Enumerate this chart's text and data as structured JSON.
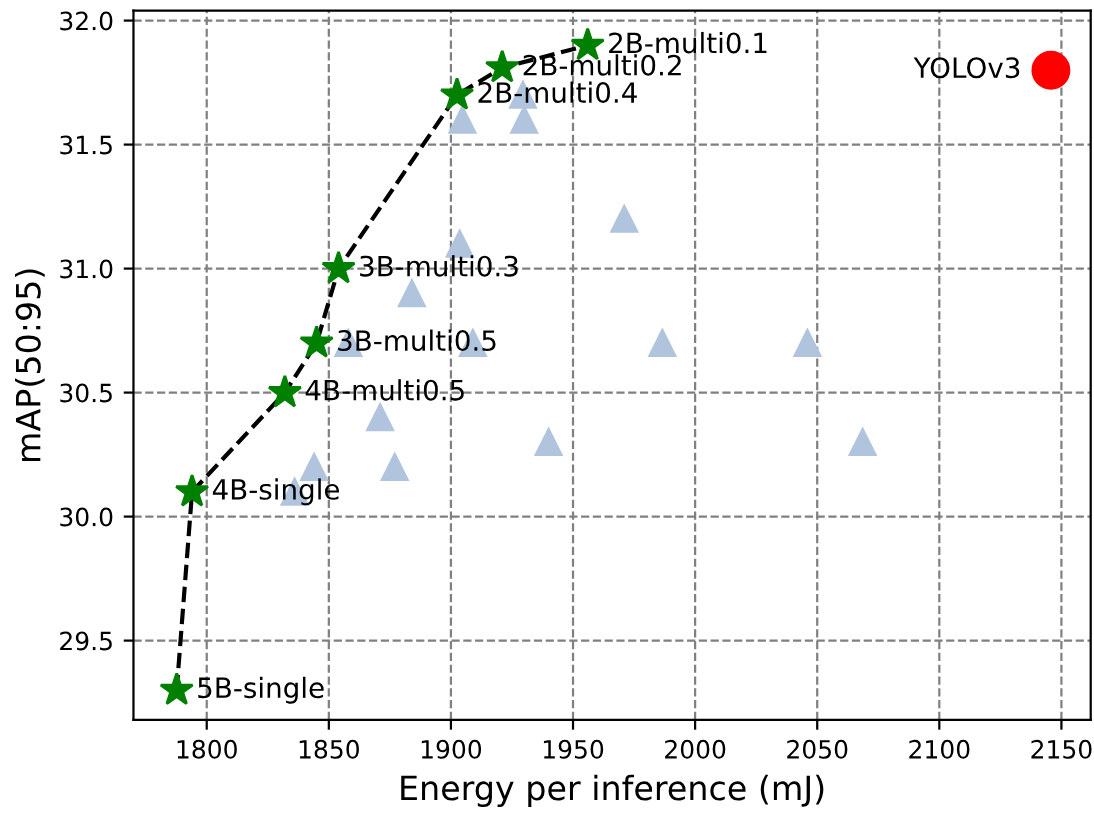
{
  "chart_data": {
    "type": "scatter",
    "xlabel": "Energy per inference (mJ)",
    "ylabel": "mAP(50:95)",
    "xlim": [
      1770,
      2162
    ],
    "ylim": [
      29.18,
      32.04
    ],
    "xticks": [
      1800,
      1850,
      1900,
      1950,
      2000,
      2050,
      2100,
      2150
    ],
    "yticks": [
      {
        "value": 29.5,
        "label": "29.5"
      },
      {
        "value": 30.0,
        "label": "30.0"
      },
      {
        "value": 30.5,
        "label": "30.5"
      },
      {
        "value": 31.0,
        "label": "31.0"
      },
      {
        "value": 31.5,
        "label": "31.5"
      },
      {
        "value": 32.0,
        "label": "32.0"
      }
    ],
    "grid": true,
    "legend": false,
    "series": [
      {
        "marker": "triangle",
        "color": "#b0c4de",
        "x": [
          1904.7,
          1930,
          1929.5,
          1903.6,
          1884,
          1858,
          1909,
          1871,
          1844,
          1836,
          1877,
          1940,
          1971,
          1986.6,
          2046,
          2068.6
        ],
        "values": [
          31.6,
          31.6,
          31.7,
          31.1,
          30.9,
          30.7,
          30.7,
          30.4,
          30.2,
          30.1,
          30.2,
          30.3,
          31.2,
          30.7,
          30.7,
          30.3
        ]
      },
      {
        "type": "line",
        "marker": "star",
        "line_style": "dashed",
        "color": "#008000",
        "x": [
          1787.7,
          1794,
          1832,
          1845,
          1854,
          1902.5,
          1921,
          1956
        ],
        "values": [
          29.3,
          30.1,
          30.5,
          30.7,
          31.0,
          31.7,
          31.81,
          31.9
        ]
      },
      {
        "marker": "circle",
        "color": "#ff0000",
        "x": [
          2145.7
        ],
        "values": [
          31.8
        ]
      }
    ],
    "annotations": [
      {
        "text": "5B-single",
        "x": 1787.7,
        "y": 29.3
      },
      {
        "text": "4B-single",
        "x": 1794,
        "y": 30.1
      },
      {
        "text": "4B-multi0.5",
        "x": 1832,
        "y": 30.5
      },
      {
        "text": "3B-multi0.5",
        "x": 1845,
        "y": 30.7
      },
      {
        "text": "3B-multi0.3",
        "x": 1854,
        "y": 31.0
      },
      {
        "text": "2B-multi0.4",
        "x": 1902.5,
        "y": 31.7
      },
      {
        "text": "2B-multi0.2",
        "x": 1921,
        "y": 31.81
      },
      {
        "text": "2B-multi0.1",
        "x": 1956,
        "y": 31.9
      },
      {
        "text": "YOLOv3",
        "x": 2145.7,
        "y": 31.8
      }
    ]
  }
}
